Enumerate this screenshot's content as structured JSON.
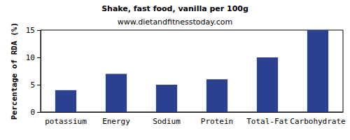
{
  "chart_data": {
    "type": "bar",
    "title": "Shake, fast food, vanilla per 100g",
    "subtitle": "www.dietandfitnesstoday.com",
    "y_label": "Percentage of RDA (%)",
    "categories": [
      "potassium",
      "Energy",
      "Sodium",
      "Protein",
      "Total-Fat",
      "Carbohydrate"
    ],
    "values": [
      4,
      7,
      5,
      6,
      10,
      15
    ],
    "color": "#2b4190",
    "ylim": [
      0,
      15
    ],
    "yticks": [
      0,
      5,
      10,
      15
    ],
    "grid": false
  }
}
